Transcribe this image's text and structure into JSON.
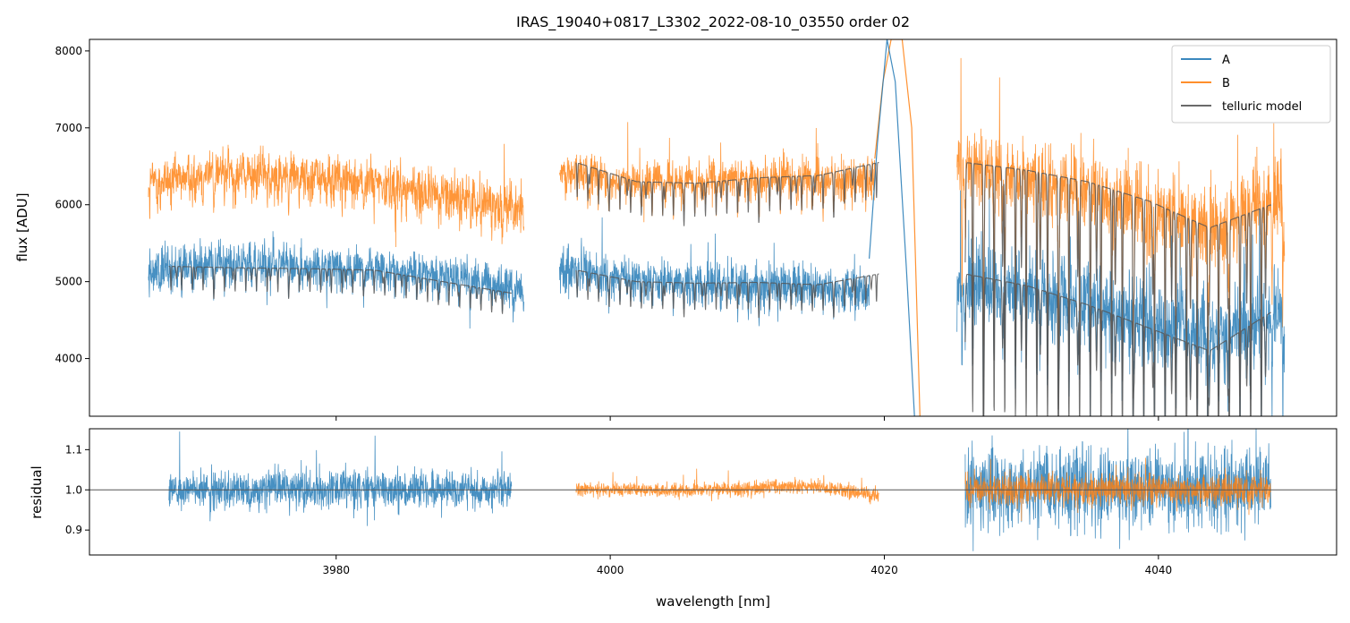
{
  "chart_data": [
    {
      "type": "line",
      "title": "IRAS_19040+0817_L3302_2022-08-10_03550  order 02",
      "xlabel": "",
      "ylabel": "flux [ADU]",
      "xlim": [
        3962,
        4053
      ],
      "ylim": [
        3250,
        8150
      ],
      "yticks": [
        4000,
        5000,
        6000,
        7000,
        8000
      ],
      "ytick_labels": [
        "4000",
        "5000",
        "6000",
        "7000",
        "8000"
      ],
      "xticks": [
        3980,
        4000,
        4020,
        4040
      ],
      "grid": false,
      "legend": {
        "position": "top-right",
        "entries": [
          "A",
          "B",
          "telluric model"
        ]
      },
      "series": [
        {
          "name": "A",
          "color": "#1f77b4",
          "segments": [
            {
              "x0": 3966.3,
              "x1": 3993.7,
              "base": [
                5150,
                5250,
                5200,
                5180,
                5100,
                4900
              ],
              "noise": 190
            },
            {
              "x0": 3996.3,
              "x1": 4018.9,
              "base": [
                5200,
                5050,
                4980,
                4950,
                4950,
                4900
              ],
              "noise": 200
            },
            {
              "x0": 4025.3,
              "x1": 4049.2,
              "base": [
                5000,
                4900,
                4700,
                4500,
                4300,
                4600
              ],
              "noise": 380
            }
          ],
          "peak": {
            "x": [
              4018.9,
              4019.5,
              4020.2,
              4020.8,
              4021.6,
              4022.2
            ],
            "y": [
              5300,
              6800,
              8150,
              7600,
              5200,
              3250
            ]
          }
        },
        {
          "name": "B",
          "color": "#ff7f0e",
          "segments": [
            {
              "x0": 3966.3,
              "x1": 3993.7,
              "base": [
                6300,
                6450,
                6400,
                6300,
                6150,
                5950
              ],
              "noise": 210
            },
            {
              "x0": 3996.3,
              "x1": 4019.3,
              "base": [
                6450,
                6300,
                6300,
                6350,
                6350,
                6300
              ],
              "noise": 190
            },
            {
              "x0": 4025.3,
              "x1": 4049.2,
              "base": [
                6500,
                6400,
                6200,
                5900,
                5700,
                6200
              ],
              "noise": 380
            }
          ],
          "peak": {
            "x": [
              4019.3,
              4019.9,
              4020.5,
              4021.3,
              4022.0,
              4022.6
            ],
            "y": [
              6600,
              7600,
              8150,
              8150,
              7000,
              3250
            ]
          }
        },
        {
          "name": "telluric model",
          "color": "#555555",
          "segments": [
            {
              "x0": 3967.8,
              "x1": 3992.8,
              "base": [
                5200,
                5180,
                5170,
                5150,
                5000,
                4850
              ],
              "depth": 0.06
            },
            {
              "x0": 3997.5,
              "x1": 4019.6,
              "base": [
                5150,
                5000,
                4980,
                4990,
                4960,
                5100
              ],
              "depth": 0.07
            },
            {
              "x0": 3997.5,
              "x1": 4019.6,
              "base": [
                6550,
                6300,
                6280,
                6350,
                6380,
                6550
              ],
              "depth": 0.07
            },
            {
              "x0": 4025.9,
              "x1": 4048.2,
              "base": [
                5100,
                4950,
                4700,
                4400,
                4100,
                4600
              ],
              "depth": 0.35
            },
            {
              "x0": 4025.9,
              "x1": 4048.2,
              "base": [
                6550,
                6450,
                6300,
                6050,
                5700,
                6000
              ],
              "depth": 0.4
            }
          ]
        }
      ]
    },
    {
      "type": "line",
      "title": "",
      "xlabel": "wavelength [nm]",
      "ylabel": "residual",
      "xlim": [
        3962,
        4053
      ],
      "ylim": [
        0.838,
        1.152
      ],
      "yticks": [
        0.9,
        1.0,
        1.1
      ],
      "ytick_labels": [
        "0.9",
        "1.0",
        "1.1"
      ],
      "xticks": [
        3980,
        4000,
        4020,
        4040
      ],
      "xtick_labels": [
        "3980",
        "4000",
        "4020",
        "4040"
      ],
      "reference_line": 1.0,
      "series": [
        {
          "name": "A",
          "color": "#1f77b4",
          "segments": [
            {
              "x0": 3967.8,
              "x1": 3992.8,
              "base": [
                1.0,
                1.0
              ],
              "noise": 0.033
            },
            {
              "x0": 4025.9,
              "x1": 4048.2,
              "base": [
                1.0,
                1.0
              ],
              "noise": 0.07
            }
          ]
        },
        {
          "name": "B",
          "color": "#ff7f0e",
          "segments": [
            {
              "x0": 3997.5,
              "x1": 4019.6,
              "base": [
                1.0,
                1.0,
                1.0,
                1.005,
                1.01,
                0.985
              ],
              "noise": 0.013
            },
            {
              "x0": 4025.9,
              "x1": 4048.2,
              "base": [
                1.0,
                1.0
              ],
              "noise": 0.028
            }
          ]
        }
      ]
    }
  ]
}
